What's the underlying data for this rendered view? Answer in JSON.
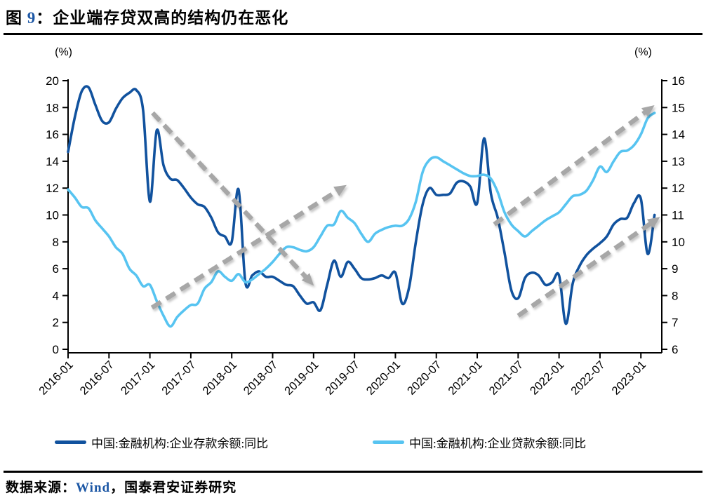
{
  "title": {
    "prefix": "图 ",
    "number": "9",
    "rest": "：企业端存贷双高的结构仍在恶化"
  },
  "footer": {
    "prefix": "数据来源：",
    "source": "Wind",
    "rest": "，国泰君安证券研究"
  },
  "colors": {
    "deposit_line": "#11529e",
    "loan_line": "#57c4f1",
    "arrow_gray": "#a7a7a7",
    "accent_blue": "#1c57a5",
    "axis_black": "#000000"
  },
  "chart_data": {
    "type": "line",
    "title": "企业端存贷双高的结构仍在恶化",
    "x_start": "2016-01",
    "x_interval": "monthly",
    "x_tick_labels": [
      "2016-01",
      "2016-07",
      "2017-01",
      "2017-07",
      "2018-01",
      "2018-07",
      "2019-01",
      "2019-07",
      "2020-01",
      "2020-07",
      "2021-01",
      "2021-07",
      "2022-01",
      "2022-07",
      "2023-01"
    ],
    "left_axis": {
      "unit": "(%)",
      "min": 0,
      "max": 20,
      "step": 2
    },
    "right_axis": {
      "unit": "(%)",
      "min": 6,
      "max": 16,
      "step": 1
    },
    "grid": false,
    "legend_position": "bottom",
    "series": [
      {
        "id": "deposit",
        "name": "中国:金融机构:企业存款余额:同比",
        "axis": "left",
        "color": "#11529e",
        "values": [
          14.7,
          17.3,
          19.2,
          19.5,
          18.2,
          17.0,
          16.9,
          17.9,
          18.7,
          19.1,
          19.3,
          17.8,
          11.0,
          16.3,
          13.7,
          12.7,
          12.6,
          12.0,
          11.3,
          10.8,
          10.6,
          9.8,
          8.7,
          8.4,
          8.0,
          11.9,
          5.0,
          5.5,
          5.8,
          5.4,
          5.4,
          5.1,
          4.8,
          4.7,
          4.0,
          3.4,
          3.5,
          2.9,
          4.8,
          6.6,
          5.4,
          6.5,
          6.0,
          5.3,
          5.2,
          5.3,
          5.5,
          5.3,
          5.7,
          3.4,
          4.6,
          8.0,
          10.8,
          12.0,
          11.5,
          11.5,
          11.6,
          12.4,
          12.5,
          12.1,
          10.9,
          15.7,
          11.6,
          9.8,
          7.2,
          4.4,
          3.8,
          5.3,
          5.7,
          5.5,
          4.8,
          5.0,
          5.5,
          1.9,
          4.9,
          6.2,
          7.0,
          7.5,
          7.9,
          8.4,
          9.3,
          9.7,
          9.8,
          10.9,
          11.2,
          7.1,
          10.0
        ]
      },
      {
        "id": "loan",
        "name": "中国:金融机构:企业贷款余额:同比",
        "axis": "right",
        "color": "#57c4f1",
        "values": [
          11.95,
          11.65,
          11.3,
          11.25,
          10.8,
          10.5,
          10.2,
          9.8,
          9.55,
          9.0,
          8.75,
          8.35,
          8.4,
          7.8,
          7.25,
          6.85,
          7.2,
          7.45,
          7.65,
          7.7,
          8.25,
          8.5,
          8.9,
          8.7,
          8.55,
          8.8,
          8.5,
          8.6,
          8.8,
          9.0,
          9.25,
          9.55,
          9.8,
          9.8,
          9.7,
          9.65,
          9.8,
          10.2,
          10.6,
          10.65,
          11.15,
          10.9,
          10.7,
          10.3,
          10.0,
          10.3,
          10.45,
          10.55,
          10.6,
          10.6,
          10.85,
          11.5,
          12.6,
          13.05,
          13.15,
          13.0,
          12.85,
          12.7,
          12.55,
          12.45,
          12.45,
          12.5,
          12.35,
          11.85,
          11.1,
          10.65,
          10.4,
          10.2,
          10.4,
          10.6,
          10.8,
          10.95,
          11.1,
          11.4,
          11.7,
          11.75,
          11.9,
          12.3,
          12.8,
          12.6,
          13.0,
          13.35,
          13.4,
          13.6,
          14.0,
          14.6,
          14.8
        ]
      }
    ],
    "trend_arrows": [
      {
        "from": {
          "month": 12.4,
          "left_value": 17.6
        },
        "to": {
          "month": 35.2,
          "left_value": 5.2
        }
      },
      {
        "from": {
          "month": 12.3,
          "left_value": 3.1
        },
        "to": {
          "month": 39.8,
          "left_value": 11.9
        }
      },
      {
        "from": {
          "month": 62.5,
          "left_value": 9.3
        },
        "to": {
          "month": 85.0,
          "left_value": 17.8
        }
      },
      {
        "from": {
          "month": 66.0,
          "left_value": 2.5
        },
        "to": {
          "month": 85.8,
          "left_value": 9.5
        }
      }
    ]
  }
}
